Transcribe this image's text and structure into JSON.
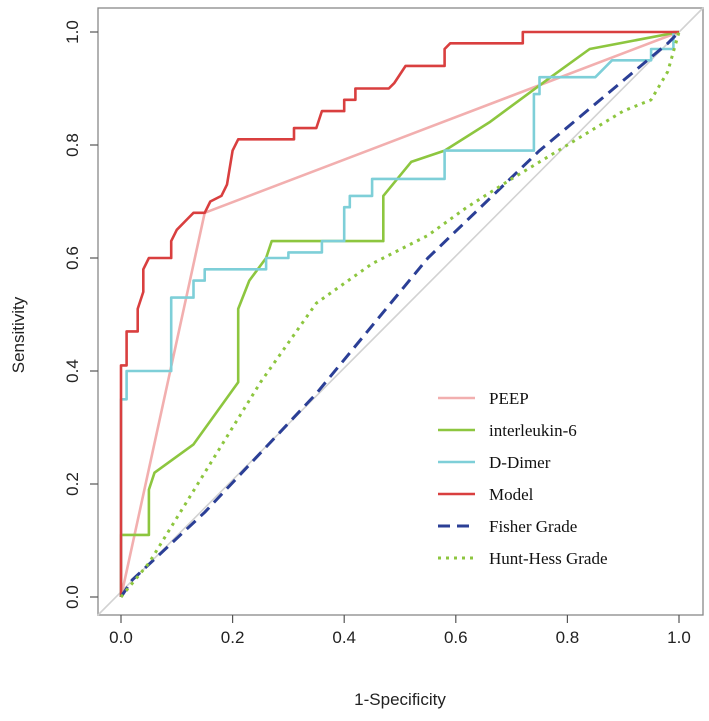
{
  "chart_data": {
    "type": "line",
    "xlabel": "1-Specificity",
    "ylabel": "Sensitivity",
    "xlim": [
      0,
      1
    ],
    "ylim": [
      0,
      1
    ],
    "x_ticks": [
      "0.0",
      "0.2",
      "0.4",
      "0.6",
      "0.8",
      "1.0"
    ],
    "y_ticks": [
      "0.0",
      "0.2",
      "0.4",
      "0.6",
      "0.8",
      "1.0"
    ],
    "legend_position": "bottom-right",
    "diagonal_reference": true,
    "series": [
      {
        "name": "PEEP",
        "color": "#F2AFAF",
        "dash": "solid",
        "points": [
          [
            0,
            0
          ],
          [
            0.15,
            0.68
          ],
          [
            1,
            1
          ]
        ]
      },
      {
        "name": "interleukin-6",
        "color": "#8DC63F",
        "dash": "solid",
        "points": [
          [
            0,
            0
          ],
          [
            0,
            0.11
          ],
          [
            0.05,
            0.11
          ],
          [
            0.05,
            0.19
          ],
          [
            0.06,
            0.22
          ],
          [
            0.13,
            0.27
          ],
          [
            0.21,
            0.38
          ],
          [
            0.21,
            0.51
          ],
          [
            0.23,
            0.56
          ],
          [
            0.26,
            0.6
          ],
          [
            0.27,
            0.63
          ],
          [
            0.47,
            0.63
          ],
          [
            0.47,
            0.71
          ],
          [
            0.52,
            0.77
          ],
          [
            0.58,
            0.79
          ],
          [
            0.66,
            0.84
          ],
          [
            0.77,
            0.92
          ],
          [
            0.84,
            0.97
          ],
          [
            1,
            1
          ]
        ]
      },
      {
        "name": "D-Dimer",
        "color": "#7ECFD8",
        "dash": "solid",
        "points": [
          [
            0,
            0
          ],
          [
            0,
            0.35
          ],
          [
            0.01,
            0.35
          ],
          [
            0.01,
            0.4
          ],
          [
            0.09,
            0.4
          ],
          [
            0.09,
            0.53
          ],
          [
            0.13,
            0.53
          ],
          [
            0.13,
            0.56
          ],
          [
            0.15,
            0.56
          ],
          [
            0.15,
            0.58
          ],
          [
            0.26,
            0.58
          ],
          [
            0.26,
            0.6
          ],
          [
            0.3,
            0.6
          ],
          [
            0.3,
            0.61
          ],
          [
            0.36,
            0.61
          ],
          [
            0.36,
            0.63
          ],
          [
            0.4,
            0.63
          ],
          [
            0.4,
            0.69
          ],
          [
            0.41,
            0.69
          ],
          [
            0.41,
            0.71
          ],
          [
            0.45,
            0.71
          ],
          [
            0.45,
            0.74
          ],
          [
            0.58,
            0.74
          ],
          [
            0.58,
            0.79
          ],
          [
            0.74,
            0.79
          ],
          [
            0.74,
            0.89
          ],
          [
            0.75,
            0.89
          ],
          [
            0.75,
            0.92
          ],
          [
            0.85,
            0.92
          ],
          [
            0.88,
            0.95
          ],
          [
            0.95,
            0.95
          ],
          [
            0.95,
            0.97
          ],
          [
            0.99,
            0.97
          ],
          [
            0.99,
            1
          ],
          [
            1,
            1
          ]
        ]
      },
      {
        "name": "Model",
        "color": "#D93F3F",
        "dash": "solid",
        "points": [
          [
            0,
            0
          ],
          [
            0,
            0.35
          ],
          [
            0,
            0.41
          ],
          [
            0.01,
            0.41
          ],
          [
            0.01,
            0.47
          ],
          [
            0.03,
            0.47
          ],
          [
            0.03,
            0.51
          ],
          [
            0.04,
            0.54
          ],
          [
            0.04,
            0.58
          ],
          [
            0.05,
            0.6
          ],
          [
            0.09,
            0.6
          ],
          [
            0.09,
            0.63
          ],
          [
            0.1,
            0.65
          ],
          [
            0.12,
            0.67
          ],
          [
            0.13,
            0.68
          ],
          [
            0.15,
            0.68
          ],
          [
            0.16,
            0.7
          ],
          [
            0.18,
            0.71
          ],
          [
            0.19,
            0.73
          ],
          [
            0.2,
            0.79
          ],
          [
            0.21,
            0.81
          ],
          [
            0.31,
            0.81
          ],
          [
            0.31,
            0.83
          ],
          [
            0.35,
            0.83
          ],
          [
            0.36,
            0.86
          ],
          [
            0.4,
            0.86
          ],
          [
            0.4,
            0.88
          ],
          [
            0.42,
            0.88
          ],
          [
            0.42,
            0.9
          ],
          [
            0.48,
            0.9
          ],
          [
            0.49,
            0.91
          ],
          [
            0.51,
            0.94
          ],
          [
            0.58,
            0.94
          ],
          [
            0.58,
            0.97
          ],
          [
            0.59,
            0.98
          ],
          [
            0.72,
            0.98
          ],
          [
            0.72,
            1
          ],
          [
            1,
            1
          ]
        ]
      },
      {
        "name": "Fisher Grade",
        "color": "#2B3F96",
        "dash": "dashed",
        "points": [
          [
            0,
            0
          ],
          [
            0.02,
            0.03
          ],
          [
            0.15,
            0.15
          ],
          [
            0.35,
            0.36
          ],
          [
            0.55,
            0.6
          ],
          [
            0.75,
            0.79
          ],
          [
            0.98,
            0.98
          ],
          [
            1,
            1
          ]
        ]
      },
      {
        "name": "Hunt-Hess Grade",
        "color": "#8DC63F",
        "dash": "dotted",
        "points": [
          [
            0,
            0
          ],
          [
            0.05,
            0.06
          ],
          [
            0.15,
            0.22
          ],
          [
            0.25,
            0.38
          ],
          [
            0.35,
            0.52
          ],
          [
            0.45,
            0.59
          ],
          [
            0.55,
            0.64
          ],
          [
            0.62,
            0.69
          ],
          [
            0.7,
            0.74
          ],
          [
            0.8,
            0.8
          ],
          [
            0.9,
            0.86
          ],
          [
            0.95,
            0.88
          ],
          [
            0.98,
            0.93
          ],
          [
            1,
            1
          ]
        ]
      }
    ]
  }
}
